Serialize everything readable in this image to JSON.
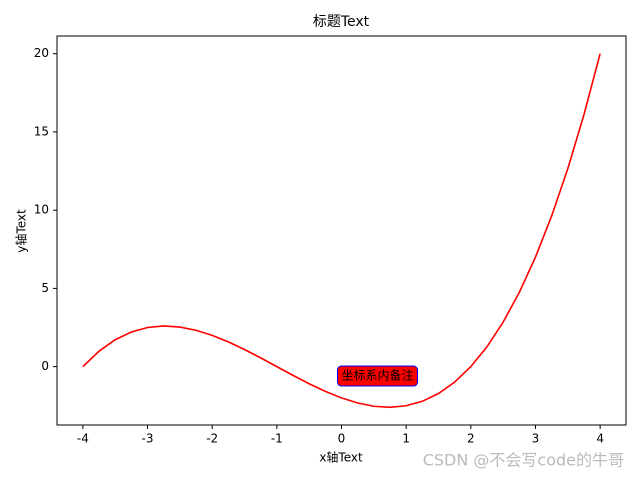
{
  "chart_data": {
    "type": "line",
    "title": "标题Text",
    "x_label": "x轴Text",
    "y_label": "y轴Text",
    "x": [
      -4,
      -3.75,
      -3.5,
      -3.25,
      -3,
      -2.75,
      -2.5,
      -2.25,
      -2,
      -1.75,
      -1.5,
      -1.25,
      -1,
      -0.75,
      -0.5,
      -0.25,
      0,
      0.25,
      0.5,
      0.75,
      1,
      1.25,
      1.5,
      1.75,
      2,
      2.25,
      2.5,
      2.75,
      3,
      3.25,
      3.5,
      3.75,
      4
    ],
    "y": [
      0,
      0.988,
      1.719,
      2.215,
      2.5,
      2.598,
      2.531,
      2.324,
      2,
      1.582,
      1.094,
      0.559,
      0,
      -0.559,
      -1.094,
      -1.582,
      -2,
      -2.324,
      -2.531,
      -2.598,
      -2.5,
      -2.215,
      -1.719,
      -0.988,
      0,
      1.27,
      2.844,
      4.746,
      7,
      9.629,
      12.656,
      16.105,
      20
    ],
    "color": "#ff0000",
    "xlim": [
      -4.4,
      4.4
    ],
    "xticks": [
      -4,
      -3,
      -2,
      -1,
      0,
      1,
      2,
      3,
      4
    ],
    "ylim": [
      -3.73,
      21.13
    ],
    "yticks": [
      0,
      5,
      10,
      15,
      20
    ],
    "annotations": [
      {
        "text": "坐标系内备注",
        "x": 0,
        "y": -0.6
      }
    ],
    "watermark": "CSDN @不会写code的牛哥"
  }
}
